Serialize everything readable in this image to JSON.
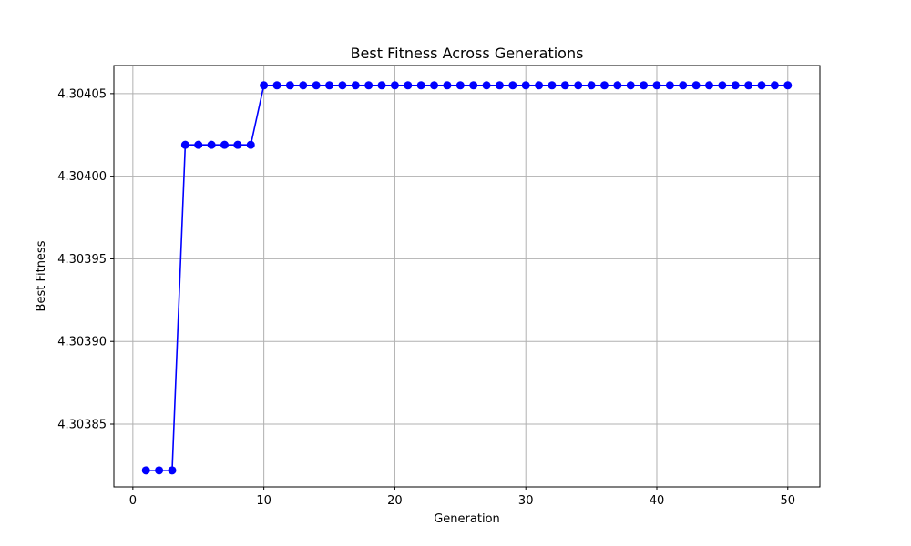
{
  "chart_data": {
    "type": "line",
    "title": "Best Fitness Across Generations",
    "xlabel": "Generation",
    "ylabel": "Best Fitness",
    "xlim": [
      -1.45,
      52.45
    ],
    "ylim": [
      4.303812,
      4.304067
    ],
    "x_ticks": [
      0,
      10,
      20,
      30,
      40,
      50
    ],
    "x_tick_labels": [
      "0",
      "10",
      "20",
      "30",
      "40",
      "50"
    ],
    "y_ticks": [
      4.30385,
      4.3039,
      4.30395,
      4.304,
      4.30405
    ],
    "y_tick_labels": [
      "4.30385",
      "4.30390",
      "4.30395",
      "4.30400",
      "4.30405"
    ],
    "grid": true,
    "legend": "none",
    "series": [
      {
        "color": "#0000ff",
        "marker": "circle",
        "x": [
          1,
          2,
          3,
          4,
          5,
          6,
          7,
          8,
          9,
          10,
          11,
          12,
          13,
          14,
          15,
          16,
          17,
          18,
          19,
          20,
          21,
          22,
          23,
          24,
          25,
          26,
          27,
          28,
          29,
          30,
          31,
          32,
          33,
          34,
          35,
          36,
          37,
          38,
          39,
          40,
          41,
          42,
          43,
          44,
          45,
          46,
          47,
          48,
          49,
          50
        ],
        "values": [
          4.303822,
          4.303822,
          4.303822,
          4.304019,
          4.304019,
          4.304019,
          4.304019,
          4.304019,
          4.304019,
          4.304055,
          4.304055,
          4.304055,
          4.304055,
          4.304055,
          4.304055,
          4.304055,
          4.304055,
          4.304055,
          4.304055,
          4.304055,
          4.304055,
          4.304055,
          4.304055,
          4.304055,
          4.304055,
          4.304055,
          4.304055,
          4.304055,
          4.304055,
          4.304055,
          4.304055,
          4.304055,
          4.304055,
          4.304055,
          4.304055,
          4.304055,
          4.304055,
          4.304055,
          4.304055,
          4.304055,
          4.304055,
          4.304055,
          4.304055,
          4.304055,
          4.304055,
          4.304055,
          4.304055,
          4.304055,
          4.304055,
          4.304055
        ]
      }
    ]
  }
}
